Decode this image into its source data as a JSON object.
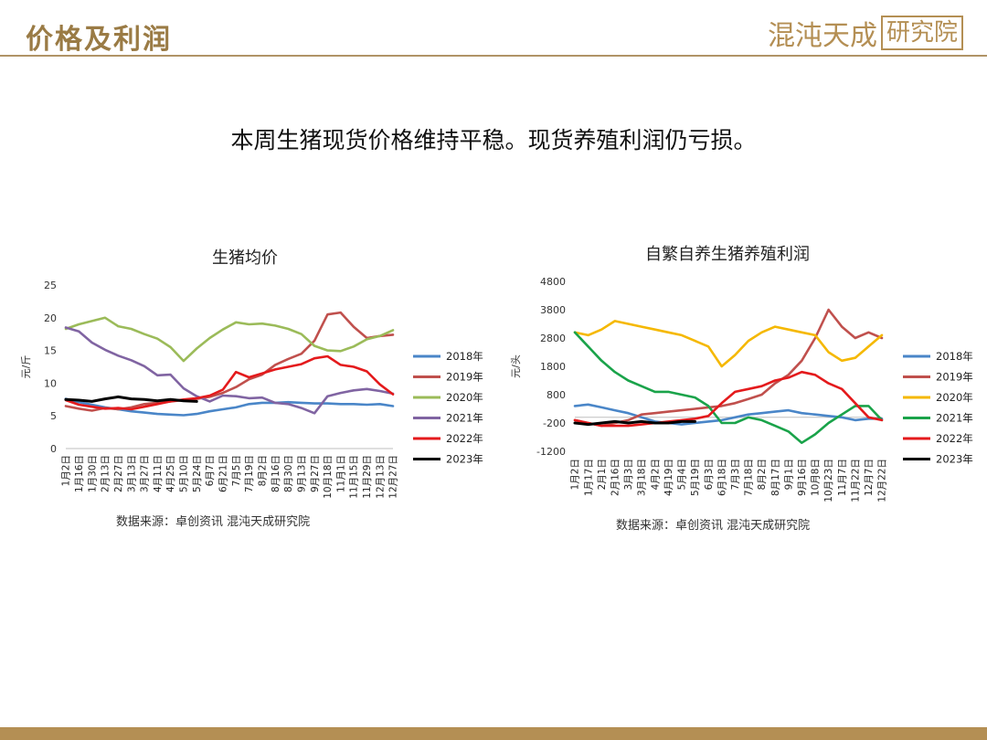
{
  "header": {
    "title": "价格及利润",
    "logo_main": "混沌天成",
    "logo_boxed": "研究院"
  },
  "subtitle": "本周生猪现货价格维持平稳。现货养殖利润仍亏损。",
  "colors": {
    "accent": "#b48f54",
    "2018": "#4a86c8",
    "2019": "#c0504d",
    "2020": "#9bbb59",
    "2020_right": "#f5b800",
    "2021": "#8064a2",
    "2021_right": "#1aa34a",
    "2022": "#e41a1c",
    "2023": "#000000"
  },
  "chart_data": [
    {
      "type": "line",
      "title": "生猪均价",
      "ylabel": "元/斤",
      "ylim": [
        0,
        25
      ],
      "yticks": [
        0,
        5,
        10,
        15,
        20,
        25
      ],
      "x_ticklabels": [
        "1月2日",
        "1月16日",
        "1月30日",
        "2月13日",
        "2月27日",
        "3月13日",
        "3月27日",
        "4月11日",
        "4月25日",
        "5月10日",
        "5月24日",
        "6月7日",
        "6月21日",
        "7月5日",
        "7月19日",
        "8月2日",
        "8月16日",
        "8月30日",
        "9月13日",
        "9月27日",
        "10月18日",
        "11月1日",
        "11月15日",
        "11月29日",
        "12月13日",
        "12月27日"
      ],
      "legend": "right",
      "source": "数据来源：卓创资讯 混沌天成研究院",
      "series": [
        {
          "name": "2018年",
          "color": "#4a86c8",
          "values": [
            7.6,
            7.1,
            6.7,
            6.3,
            6.0,
            5.7,
            5.5,
            5.3,
            5.2,
            5.1,
            5.3,
            5.7,
            6.0,
            6.3,
            6.8,
            7.0,
            7.0,
            7.1,
            7.0,
            6.9,
            6.9,
            6.8,
            6.8,
            6.7,
            6.8,
            6.5
          ]
        },
        {
          "name": "2019年",
          "color": "#c0504d",
          "values": [
            6.5,
            6.1,
            5.8,
            6.2,
            6.0,
            6.3,
            6.8,
            7.0,
            7.2,
            7.4,
            7.6,
            7.9,
            8.5,
            9.4,
            10.6,
            11.3,
            12.8,
            13.7,
            14.5,
            16.5,
            20.5,
            20.8,
            18.6,
            16.9,
            17.2,
            17.4
          ]
        },
        {
          "name": "2020年",
          "color": "#9bbb59",
          "values": [
            18.3,
            19.0,
            19.5,
            20.0,
            18.7,
            18.3,
            17.5,
            16.8,
            15.5,
            13.4,
            15.3,
            16.9,
            18.2,
            19.3,
            19.0,
            19.1,
            18.8,
            18.3,
            17.5,
            15.7,
            15.0,
            14.9,
            15.6,
            16.7,
            17.2,
            18.1
          ]
        },
        {
          "name": "2021年",
          "color": "#8064a2",
          "values": [
            18.5,
            17.9,
            16.2,
            15.1,
            14.2,
            13.5,
            12.6,
            11.2,
            11.3,
            9.2,
            8.0,
            7.2,
            8.1,
            8.0,
            7.7,
            7.8,
            7.0,
            6.8,
            6.2,
            5.4,
            8.0,
            8.5,
            8.9,
            9.1,
            8.8,
            8.4
          ]
        },
        {
          "name": "2022年",
          "color": "#e41a1c",
          "values": [
            7.4,
            6.7,
            6.4,
            6.1,
            6.2,
            6.0,
            6.4,
            6.8,
            7.2,
            7.5,
            7.7,
            8.1,
            9.0,
            11.7,
            10.9,
            11.5,
            12.1,
            12.5,
            12.9,
            13.8,
            14.1,
            12.8,
            12.5,
            11.8,
            9.8,
            8.3
          ]
        },
        {
          "name": "2023年",
          "color": "#000000",
          "values": [
            7.5,
            7.4,
            7.2,
            7.6,
            7.9,
            7.6,
            7.5,
            7.3,
            7.5,
            7.3,
            7.2,
            null,
            null,
            null,
            null,
            null,
            null,
            null,
            null,
            null,
            null,
            null,
            null,
            null,
            null,
            null
          ]
        }
      ]
    },
    {
      "type": "line",
      "title": "自繁自养生猪养殖利润",
      "ylabel": "元/头",
      "ylim": [
        -1200,
        4800
      ],
      "yticks": [
        -1200,
        -200,
        800,
        1800,
        2800,
        3800,
        4800
      ],
      "x_ticklabels": [
        "1月2日",
        "1月17日",
        "2月1日",
        "2月16日",
        "3月3日",
        "3月18日",
        "4月2日",
        "4月19日",
        "5月4日",
        "5月19日",
        "6月3日",
        "6月18日",
        "7月3日",
        "7月18日",
        "8月2日",
        "8月17日",
        "9月1日",
        "9月16日",
        "10月8日",
        "10月23日",
        "11月7日",
        "11月22日",
        "12月7日",
        "12月22日"
      ],
      "legend": "right",
      "source": "数据来源：卓创资讯 混沌天成研究院",
      "series": [
        {
          "name": "2018年",
          "color": "#4a86c8",
          "values": [
            400,
            450,
            350,
            250,
            150,
            0,
            -150,
            -200,
            -250,
            -200,
            -150,
            -100,
            0,
            100,
            150,
            200,
            250,
            150,
            100,
            50,
            0,
            -100,
            -50,
            -50
          ]
        },
        {
          "name": "2019年",
          "color": "#c0504d",
          "values": [
            -100,
            -200,
            -300,
            -200,
            -100,
            100,
            150,
            200,
            250,
            300,
            350,
            400,
            500,
            650,
            800,
            1200,
            1500,
            2000,
            2800,
            3800,
            3200,
            2800,
            3000,
            2800
          ]
        },
        {
          "name": "2020年",
          "color": "#f5b800",
          "values": [
            3000,
            2900,
            3100,
            3400,
            3300,
            3200,
            3100,
            3000,
            2900,
            2700,
            2500,
            1800,
            2200,
            2700,
            3000,
            3200,
            3100,
            3000,
            2900,
            2300,
            2000,
            2100,
            2500,
            2900
          ]
        },
        {
          "name": "2021年",
          "color": "#1aa34a",
          "values": [
            3000,
            2500,
            2000,
            1600,
            1300,
            1100,
            900,
            900,
            800,
            700,
            400,
            -200,
            -200,
            0,
            -100,
            -300,
            -500,
            -900,
            -600,
            -200,
            100,
            400,
            400,
            -100
          ]
        },
        {
          "name": "2022年",
          "color": "#e41a1c",
          "values": [
            -100,
            -200,
            -300,
            -300,
            -300,
            -250,
            -200,
            -150,
            -100,
            -50,
            50,
            500,
            900,
            1000,
            1100,
            1300,
            1400,
            1600,
            1500,
            1200,
            1000,
            500,
            0,
            -100
          ]
        },
        {
          "name": "2023年",
          "color": "#000000",
          "values": [
            -200,
            -250,
            -200,
            -150,
            -200,
            -150,
            -200,
            -200,
            -150,
            -150,
            null,
            null,
            null,
            null,
            null,
            null,
            null,
            null,
            null,
            null,
            null,
            null,
            null,
            null
          ]
        }
      ]
    }
  ]
}
